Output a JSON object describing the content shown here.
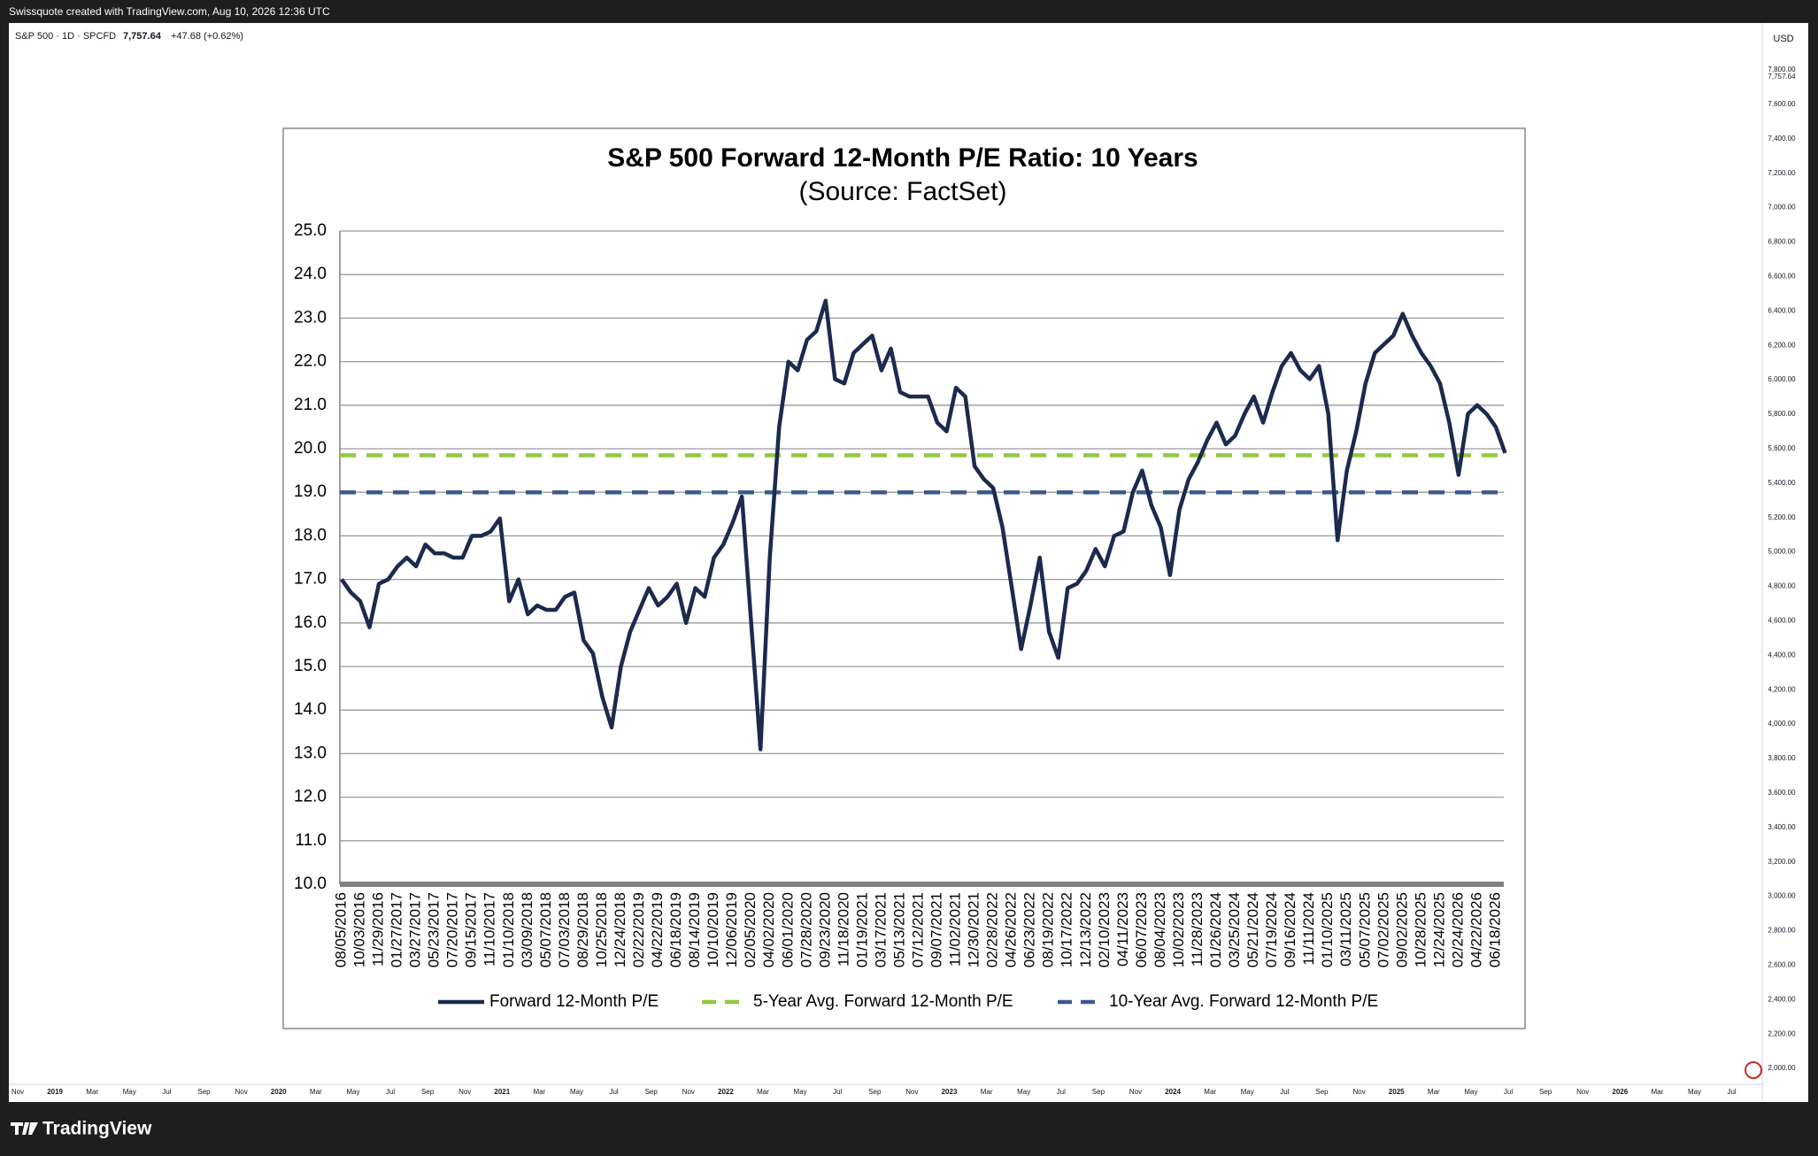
{
  "ui": {
    "header": "Swissquote created with TradingView.com, Aug 10, 2026 12:36 UTC",
    "symbol": "S&P 500 · 1D · SPCFD",
    "last_price": "7,757.64",
    "change": "+47.68 (+0.62%)",
    "currency": "USD",
    "price_axis_labels": [
      "7,800.00",
      "7,600.00",
      "7,400.00",
      "7,200.00",
      "7,000.00",
      "6,800.00",
      "6,600.00",
      "6,400.00",
      "6,200.00",
      "6,000.00",
      "5,800.00",
      "5,600.00",
      "5,400.00",
      "5,200.00",
      "5,000.00",
      "4,800.00",
      "4,600.00",
      "4,400.00",
      "4,200.00",
      "4,000.00",
      "3,800.00",
      "3,600.00",
      "3,400.00",
      "3,200.00",
      "3,000.00",
      "2,800.00",
      "2,600.00",
      "2,400.00",
      "2,200.00",
      "2,000.00"
    ],
    "time_axis_labels": [
      "Nov",
      "2019",
      "Mar",
      "May",
      "Jul",
      "Sep",
      "Nov",
      "2020",
      "Mar",
      "May",
      "Jul",
      "Sep",
      "Nov",
      "2021",
      "Mar",
      "May",
      "Jul",
      "Sep",
      "Nov",
      "2022",
      "Mar",
      "May",
      "Jul",
      "Sep",
      "Nov",
      "2023",
      "Mar",
      "May",
      "Jul",
      "Sep",
      "Nov",
      "2024",
      "Mar",
      "May",
      "Jul",
      "Sep",
      "Nov",
      "2025",
      "Mar",
      "May",
      "Jul",
      "Sep",
      "Nov",
      "2026",
      "Mar",
      "May",
      "Jul"
    ],
    "brand": "TradingView"
  },
  "chart_data": {
    "type": "line",
    "title": "S&P 500 Forward 12-Month P/E Ratio: 10 Years",
    "subtitle": "(Source: FactSet)",
    "categories": [
      "08/05/2016",
      null,
      "10/03/2016",
      null,
      "11/29/2016",
      null,
      "01/27/2017",
      null,
      "03/27/2017",
      null,
      "05/23/2017",
      null,
      "07/20/2017",
      null,
      "09/15/2017",
      null,
      "11/10/2017",
      null,
      "01/10/2018",
      null,
      "03/09/2018",
      null,
      "05/07/2018",
      null,
      "07/03/2018",
      null,
      "08/29/2018",
      null,
      "10/25/2018",
      null,
      "12/24/2018",
      null,
      "02/22/2019",
      null,
      "04/22/2019",
      null,
      "06/18/2019",
      null,
      "08/14/2019",
      null,
      "10/10/2019",
      null,
      "12/06/2019",
      null,
      "02/05/2020",
      null,
      "04/02/2020",
      null,
      "06/01/2020",
      null,
      "07/28/2020",
      null,
      "09/23/2020",
      null,
      "11/18/2020",
      null,
      "01/19/2021",
      null,
      "03/17/2021",
      null,
      "05/13/2021",
      null,
      "07/12/2021",
      null,
      "09/07/2021",
      null,
      "11/02/2021",
      null,
      "12/30/2021",
      null,
      "02/28/2022",
      null,
      "04/26/2022",
      null,
      "06/23/2022",
      null,
      "08/19/2022",
      null,
      "10/17/2022",
      null,
      "12/13/2022",
      null,
      "02/10/2023",
      null,
      "04/11/2023",
      null,
      "06/07/2023",
      null,
      "08/04/2023",
      null,
      "10/02/2023",
      null,
      "11/28/2023",
      null,
      "01/26/2024",
      null,
      "03/25/2024",
      null,
      "05/21/2024",
      null,
      "07/19/2024",
      null,
      "09/16/2024",
      null,
      "11/11/2024",
      null,
      "01/10/2025",
      null,
      "03/11/2025",
      null,
      "05/07/2025",
      null,
      "07/02/2025",
      null,
      "09/02/2025",
      null,
      "10/28/2025",
      null,
      "12/24/2025",
      null,
      "02/24/2026",
      null,
      "04/22/2026",
      null,
      "06/18/2026",
      null
    ],
    "series": [
      {
        "name": "Forward 12-Month P/E",
        "color": "#1b2a4e",
        "values": [
          17.0,
          16.7,
          16.5,
          15.9,
          16.9,
          17.0,
          17.3,
          17.5,
          17.3,
          17.8,
          17.6,
          17.6,
          17.5,
          17.5,
          18.0,
          18.0,
          18.1,
          18.4,
          16.5,
          17.0,
          16.2,
          16.4,
          16.3,
          16.3,
          16.6,
          16.7,
          15.6,
          15.3,
          14.3,
          13.6,
          15.0,
          15.8,
          16.3,
          16.8,
          16.4,
          16.6,
          16.9,
          16.0,
          16.8,
          16.6,
          17.5,
          17.8,
          18.3,
          18.9,
          16.0,
          13.1,
          17.5,
          20.5,
          22.0,
          21.8,
          22.5,
          22.7,
          23.4,
          21.6,
          21.5,
          22.2,
          22.4,
          22.6,
          21.8,
          22.3,
          21.3,
          21.2,
          21.2,
          21.2,
          20.6,
          20.4,
          21.4,
          21.2,
          19.6,
          19.3,
          19.1,
          18.2,
          16.8,
          15.4,
          16.4,
          17.5,
          15.8,
          15.2,
          16.8,
          16.9,
          17.2,
          17.7,
          17.3,
          18.0,
          18.1,
          19.0,
          19.5,
          18.7,
          18.2,
          17.1,
          18.6,
          19.3,
          19.7,
          20.2,
          20.6,
          20.1,
          20.3,
          20.8,
          21.2,
          20.6,
          21.3,
          21.9,
          22.2,
          21.8,
          21.6,
          21.9,
          20.8,
          17.9,
          19.5,
          20.4,
          21.5,
          22.2,
          22.4,
          22.6,
          23.1,
          22.6,
          22.2,
          21.9,
          21.5,
          20.6,
          19.4,
          20.8,
          21.0,
          20.8,
          20.5,
          19.9
        ]
      }
    ],
    "reference_lines": [
      {
        "name": "5-Year Avg. Forward 12-Month P/E",
        "color": "#92c83e",
        "value": 19.85
      },
      {
        "name": "10-Year Avg. Forward 12-Month P/E",
        "color": "#3a5a92",
        "value": 19.0
      }
    ],
    "ylim": [
      10,
      25
    ],
    "yticks": [
      {
        "value": 10,
        "label": "10.0"
      },
      {
        "value": 11,
        "label": "11.0"
      },
      {
        "value": 12,
        "label": "12.0"
      },
      {
        "value": 13,
        "label": "13.0"
      },
      {
        "value": 14,
        "label": "14.0"
      },
      {
        "value": 15,
        "label": "15.0"
      },
      {
        "value": 16,
        "label": "16.0"
      },
      {
        "value": 17,
        "label": "17.0"
      },
      {
        "value": 18,
        "label": "18.0"
      },
      {
        "value": 19,
        "label": "19.0"
      },
      {
        "value": 20,
        "label": "20.0"
      },
      {
        "value": 21,
        "label": "21.0"
      },
      {
        "value": 22,
        "label": "22.0"
      },
      {
        "value": 23,
        "label": "23.0"
      },
      {
        "value": 24,
        "label": "24.0"
      },
      {
        "value": 25,
        "label": "25.0"
      }
    ],
    "grid": true,
    "legend": "bottom"
  }
}
